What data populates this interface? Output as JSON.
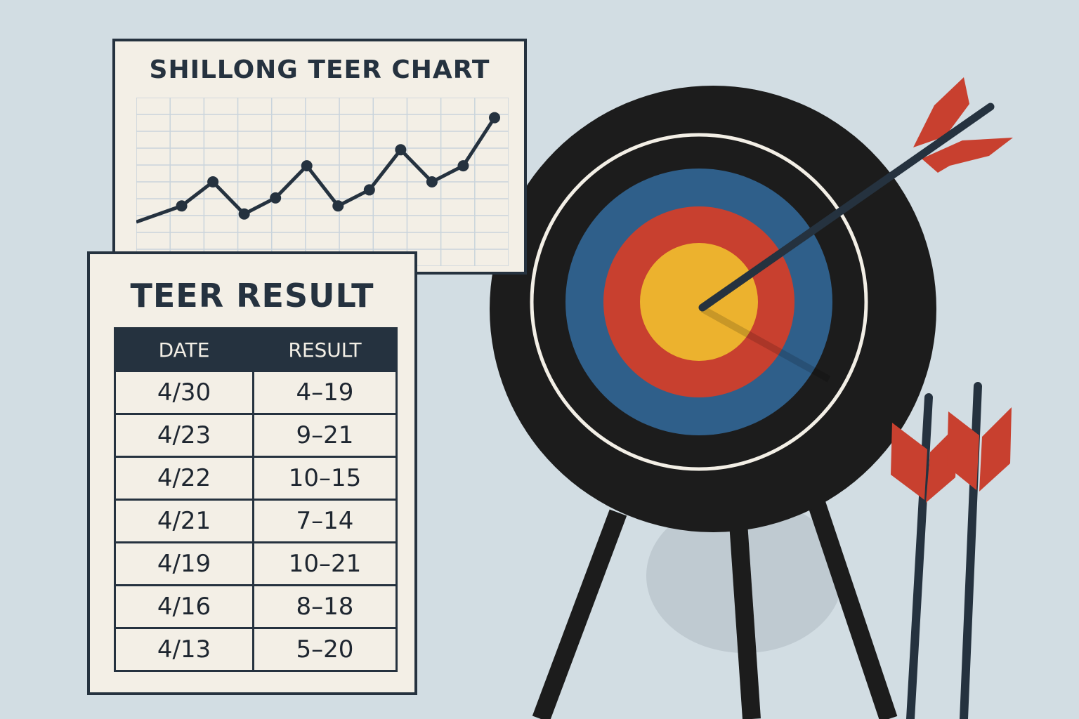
{
  "chart": {
    "title": "SHILLONG TEER CHART",
    "chart_data": {
      "type": "line",
      "title": "SHILLONG TEER CHART",
      "xlabel": "",
      "ylabel": "",
      "grid": true,
      "values": [
        2,
        4,
        7,
        3,
        5,
        9,
        4,
        6,
        11,
        7,
        9,
        15
      ]
    }
  },
  "results": {
    "title": "TEER RESULT",
    "headers": [
      "DATE",
      "RESULT"
    ],
    "rows": [
      {
        "date": "4/30",
        "result": "4–19"
      },
      {
        "date": "4/23",
        "result": "9–21"
      },
      {
        "date": "4/22",
        "result": "10–15"
      },
      {
        "date": "4/21",
        "result": "7–14"
      },
      {
        "date": "4/19",
        "result": "10–21"
      },
      {
        "date": "4/16",
        "result": "8–18"
      },
      {
        "date": "4/13",
        "result": "5–20"
      }
    ]
  },
  "colors": {
    "background": "#d2dde3",
    "ink": "#25323f",
    "paper": "#f3efe6",
    "target_black": "#1c1c1c",
    "target_blue": "#2f5f8a",
    "target_red": "#c8402f",
    "target_yellow": "#ecb22e",
    "fletching": "#c8402f"
  },
  "icons": [
    "archery-target-icon",
    "arrow-icon"
  ]
}
